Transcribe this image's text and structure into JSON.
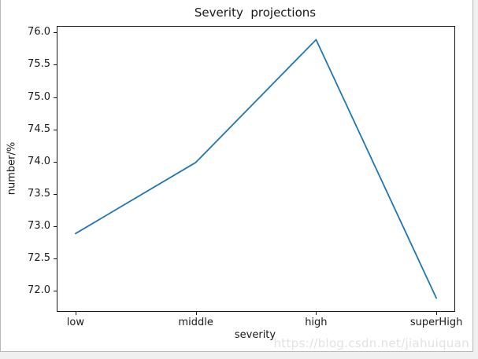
{
  "figure": {
    "watermark": "https://blog.csdn.net/jiahuiquan"
  },
  "chart_data": {
    "type": "line",
    "title": "Severity  projections",
    "categories": [
      "low",
      "middle",
      "high",
      "superHigh"
    ],
    "series": [
      {
        "name": "severity projection",
        "values": [
          72.9,
          74.0,
          75.9,
          71.9
        ]
      }
    ],
    "xlabel": "severity",
    "ylabel": "number/%",
    "ylim": [
      71.7,
      76.1
    ],
    "yticks": [
      72.0,
      72.5,
      73.0,
      73.5,
      74.0,
      74.5,
      75.0,
      75.5,
      76.0
    ],
    "ytick_labels": [
      "72.0",
      "72.5",
      "73.0",
      "73.5",
      "74.0",
      "74.5",
      "75.0",
      "75.5",
      "76.0"
    ],
    "grid": false,
    "legend": null,
    "line_color": "#1f77b4",
    "text_color": "#1a1a1a",
    "watermark_color": "#e2e2e2"
  }
}
